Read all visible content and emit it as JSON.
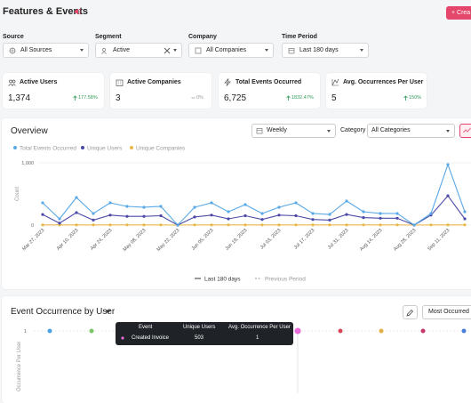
{
  "header": {
    "title": "Features & Events",
    "button": "+ Crea"
  },
  "filters": [
    {
      "label": "Source",
      "value": "All Sources"
    },
    {
      "label": "Segment",
      "value": "Active"
    },
    {
      "label": "Company",
      "value": "All Companies"
    },
    {
      "label": "Time Period",
      "value": "Last 180 days"
    }
  ],
  "kpis": [
    {
      "label": "Active Users",
      "value": "1,374",
      "change": "177.58%"
    },
    {
      "label": "Active Companies",
      "value": "3",
      "change": "0%"
    },
    {
      "label": "Total Events Occurred",
      "value": "6,725",
      "change": "1832.47%"
    },
    {
      "label": "Avg. Occurrences Per User",
      "value": "5",
      "change": "150%"
    }
  ],
  "overview": {
    "title": "Overview",
    "interval": "Weekly",
    "category_label": "Category",
    "category": "All Categories",
    "period_legend": [
      "Last 180 days",
      "Previous Period"
    ],
    "chart": {
      "type": "line",
      "ylabel": "Count",
      "ylim": [
        0,
        1000
      ],
      "yticks": [
        0,
        {
          "value": 1000,
          "label": "1,000"
        }
      ],
      "categories": [
        "Mar 27, 2023",
        null,
        "Apr 10, 2023",
        null,
        "Apr 24, 2023",
        null,
        "May 08, 2023",
        null,
        "May 22, 2023",
        null,
        "Jun 05, 2023",
        null,
        "Jun 19, 2023",
        null,
        "Jul 03, 2023",
        null,
        "Jul 17, 2023",
        null,
        "Jul 31, 2023",
        null,
        "Aug 14, 2023",
        null,
        "Aug 28, 2023",
        null,
        "Sep 11, 2023",
        null
      ],
      "series": [
        {
          "name": "Total Events Occurred",
          "color": "#5aa9e6",
          "values": [
            357,
            100,
            443,
            186,
            357,
            300,
            286,
            300,
            0,
            286,
            357,
            214,
            329,
            186,
            286,
            357,
            186,
            171,
            386,
            214,
            186,
            186,
            0,
            186,
            971,
            214
          ]
        },
        {
          "name": "Unique Users",
          "color": "#4a4aa6",
          "values": [
            170,
            30,
            200,
            80,
            160,
            140,
            140,
            150,
            0,
            130,
            160,
            100,
            150,
            90,
            160,
            150,
            90,
            80,
            170,
            120,
            110,
            110,
            0,
            160,
            470,
            100
          ]
        },
        {
          "name": "Unique Companies",
          "color": "#e8b84a",
          "values": [
            3,
            3,
            3,
            3,
            3,
            3,
            3,
            3,
            0,
            3,
            3,
            3,
            3,
            3,
            3,
            3,
            3,
            3,
            3,
            3,
            3,
            3,
            0,
            3,
            3,
            3
          ]
        }
      ]
    }
  },
  "occurrence": {
    "title": "Event Occurrence by User",
    "sort": "Most Occurred",
    "chart": {
      "type": "scatter",
      "ylabel": "Occurrence Per User",
      "ylim": [
        0,
        1
      ],
      "yticks": [
        1
      ],
      "points": [
        {
          "color": "#4aa3df",
          "value": 1
        },
        {
          "color": "#7cc36a",
          "value": 1
        },
        {
          "color": "#e86bd8",
          "value": 1
        },
        {
          "color": "#d8455a",
          "value": 1
        },
        {
          "color": "#e0b04a",
          "value": 1
        },
        {
          "color": "#c8356a",
          "value": 1
        },
        {
          "color": "#4a7fd8",
          "value": 1
        }
      ]
    },
    "tooltip": {
      "headers": [
        "Event",
        "Unique Users",
        "Avg. Occurrence Per User"
      ],
      "row": [
        "Created Invoice",
        503,
        1
      ]
    }
  }
}
